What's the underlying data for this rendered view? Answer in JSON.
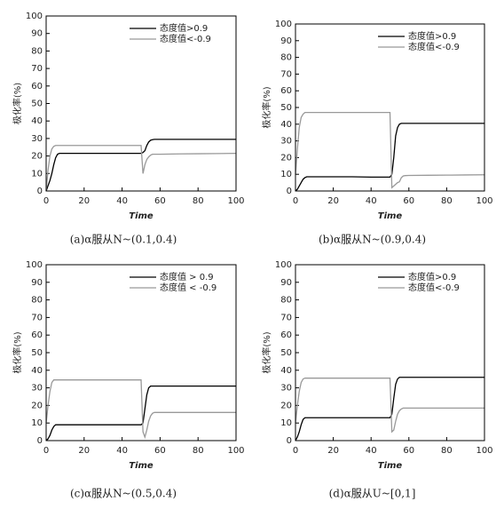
{
  "chart_data": [
    {
      "type": "line",
      "caption": "(a)α服从N~(0.1,0.4)",
      "xlabel": "Time",
      "ylabel": "极化率(%)",
      "x": [
        0,
        1,
        2,
        3,
        4,
        5,
        6,
        7,
        8,
        10,
        20,
        30,
        40,
        50,
        51,
        52,
        53,
        54,
        55,
        56,
        57,
        58,
        60,
        70,
        80,
        90,
        100
      ],
      "series": [
        {
          "name": "态度值>0.9",
          "color": "#000000",
          "values": [
            0,
            3,
            6,
            10,
            15,
            19,
            21,
            21.5,
            21.5,
            21.5,
            21.5,
            21.5,
            21.5,
            21.5,
            22,
            23,
            26,
            28,
            29,
            29.3,
            29.5,
            29.5,
            29.5,
            29.5,
            29.5,
            29.5,
            29.5
          ]
        },
        {
          "name": "态度值<-0.9",
          "color": "#999999",
          "values": [
            0,
            12,
            20,
            24,
            25.5,
            26,
            26,
            26,
            26,
            26,
            26,
            26,
            26,
            26,
            10,
            15,
            18,
            19.5,
            20.5,
            21,
            21,
            21,
            21,
            21.2,
            21.3,
            21.4,
            21.5
          ]
        }
      ],
      "xlim": [
        0,
        100
      ],
      "xticks": [
        0,
        20,
        40,
        60,
        80,
        100
      ],
      "ylim": [
        0,
        100
      ],
      "yticks": [
        0,
        10,
        20,
        30,
        40,
        50,
        60,
        70,
        80,
        90,
        100
      ],
      "legend": "upper right"
    },
    {
      "type": "line",
      "caption": "(b)α服从N~(0.9,0.4)",
      "xlabel": "Time",
      "ylabel": "极化率(%)",
      "x": [
        0,
        1,
        2,
        3,
        4,
        5,
        6,
        7,
        8,
        10,
        20,
        30,
        40,
        50,
        51,
        52,
        53,
        54,
        55,
        56,
        57,
        58,
        60,
        70,
        80,
        90,
        100
      ],
      "series": [
        {
          "name": "态度值>0.9",
          "color": "#000000",
          "values": [
            0,
            1,
            3,
            5,
            7,
            8,
            8.5,
            8.5,
            8.5,
            8.5,
            8.5,
            8.5,
            8.3,
            8.3,
            10,
            20,
            33,
            38,
            40,
            40.5,
            40.5,
            40.5,
            40.5,
            40.5,
            40.5,
            40.5,
            40.5
          ]
        },
        {
          "name": "态度值<-0.9",
          "color": "#999999",
          "values": [
            10,
            25,
            38,
            44,
            46,
            47,
            47,
            47,
            47,
            47,
            47,
            47,
            47,
            47,
            2,
            3,
            4,
            5,
            5.5,
            8,
            9,
            9.2,
            9.3,
            9.4,
            9.5,
            9.6,
            9.7
          ]
        }
      ],
      "xlim": [
        0,
        100
      ],
      "xticks": [
        0,
        20,
        40,
        60,
        80,
        100
      ],
      "ylim": [
        0,
        100
      ],
      "yticks": [
        0,
        10,
        20,
        30,
        40,
        50,
        60,
        70,
        80,
        90,
        100
      ],
      "legend": "upper right"
    },
    {
      "type": "line",
      "caption": "(c)α服从N~(0.5,0.4)",
      "xlabel": "Time",
      "ylabel": "极化率(%)",
      "x": [
        0,
        1,
        2,
        3,
        4,
        5,
        6,
        7,
        8,
        10,
        20,
        30,
        40,
        50,
        51,
        52,
        53,
        54,
        55,
        56,
        57,
        58,
        60,
        70,
        80,
        90,
        100
      ],
      "series": [
        {
          "name": "态度值 > 0.9",
          "color": "#000000",
          "values": [
            0,
            1,
            3,
            6,
            8,
            9,
            9,
            9,
            9,
            9,
            9,
            9,
            9,
            9,
            10,
            18,
            26,
            30,
            31,
            31,
            31,
            31,
            31,
            31,
            31,
            31,
            31
          ]
        },
        {
          "name": "态度值 < -0.9",
          "color": "#999999",
          "values": [
            10,
            20,
            28,
            33,
            34.5,
            34.5,
            34.5,
            34.5,
            34.5,
            34.5,
            34.5,
            34.5,
            34.5,
            34.5,
            5,
            2,
            6,
            11,
            14,
            15.5,
            16,
            16,
            16,
            16,
            16,
            16,
            16
          ]
        }
      ],
      "xlim": [
        0,
        100
      ],
      "xticks": [
        0,
        20,
        40,
        60,
        80,
        100
      ],
      "ylim": [
        0,
        100
      ],
      "yticks": [
        0,
        10,
        20,
        30,
        40,
        50,
        60,
        70,
        80,
        90,
        100
      ],
      "legend": "upper right"
    },
    {
      "type": "line",
      "caption": "(d)α服从U~[0,1]",
      "xlabel": "Time",
      "ylabel": "极化率(%)",
      "x": [
        0,
        1,
        2,
        3,
        4,
        5,
        6,
        7,
        8,
        10,
        20,
        30,
        40,
        50,
        51,
        52,
        53,
        54,
        55,
        56,
        57,
        58,
        60,
        70,
        80,
        90,
        100
      ],
      "series": [
        {
          "name": "态度值>0.9",
          "color": "#000000",
          "values": [
            0,
            2,
            5,
            9,
            12,
            13,
            13,
            13,
            13,
            13,
            13,
            13,
            13,
            13,
            15,
            24,
            32,
            35,
            36,
            36,
            36,
            36,
            36,
            36,
            36,
            36,
            36
          ]
        },
        {
          "name": "态度值<-0.9",
          "color": "#999999",
          "values": [
            10,
            20,
            28,
            33,
            35,
            35.5,
            35.5,
            35.5,
            35.5,
            35.5,
            35.5,
            35.5,
            35.5,
            35.5,
            5,
            6,
            11,
            15,
            17,
            18,
            18.5,
            18.5,
            18.5,
            18.5,
            18.5,
            18.5,
            18.5
          ]
        }
      ],
      "xlim": [
        0,
        100
      ],
      "xticks": [
        0,
        20,
        40,
        60,
        80,
        100
      ],
      "ylim": [
        0,
        100
      ],
      "yticks": [
        0,
        10,
        20,
        30,
        40,
        50,
        60,
        70,
        80,
        90,
        100
      ],
      "legend": "upper right"
    }
  ]
}
